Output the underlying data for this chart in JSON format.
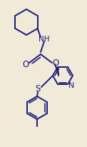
{
  "background_color": "#f2ead8",
  "line_color": "#1a1a7a",
  "line_width": 1.4,
  "font_size": 7.5,
  "figsize": [
    1.22,
    2.07
  ],
  "dpi": 100,
  "xlim": [
    0.0,
    1.22
  ],
  "ylim": [
    0.0,
    2.07
  ]
}
